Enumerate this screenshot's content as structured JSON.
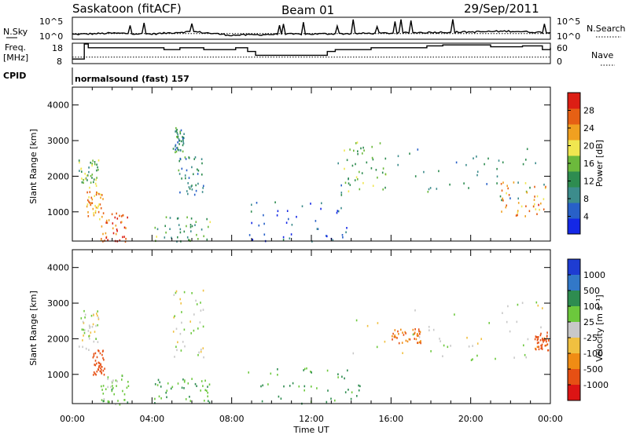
{
  "header": {
    "station": "Saskatoon (fitACF)",
    "beam": "Beam 01",
    "date": "29/Sep/2011"
  },
  "noise_panel": {
    "left_label": "N.Sky",
    "right_label": "N.Search",
    "left_ticks": [
      "10^5",
      "10^0"
    ],
    "right_ticks": [
      "10^5",
      "10^0"
    ]
  },
  "freq_panel": {
    "left_label_line1": "Freq.",
    "left_label_line2": "[MHz]",
    "right_label": "Nave",
    "left_ticks": [
      "18",
      "8"
    ],
    "right_ticks": [
      "60",
      "0"
    ]
  },
  "cpid": {
    "label": "CPID",
    "program": "normalsound (fast) 157"
  },
  "axes": {
    "ylabel": "Slant Range [km]",
    "xlabel": "Time UT",
    "yticks": [
      "1000",
      "2000",
      "3000",
      "4000"
    ],
    "xticks": [
      "00:00",
      "04:00",
      "08:00",
      "12:00",
      "16:00",
      "20:00",
      "00:00"
    ]
  },
  "power_colorbar": {
    "label": "Power [dB]",
    "ticks": [
      "4",
      "8",
      "12",
      "16",
      "20",
      "24",
      "28"
    ],
    "colors": [
      "#1428e6",
      "#2860c8",
      "#3c8c8c",
      "#2e8c50",
      "#6cb93c",
      "#f0e650",
      "#f0a020",
      "#e66014",
      "#dc1e14"
    ]
  },
  "velocity_colorbar": {
    "label": "Velocity [m s⁻¹]",
    "ticks": [
      "1000",
      "500",
      "100",
      "25",
      "-25",
      "-100",
      "-500",
      "-1000"
    ],
    "colors": [
      "#1e3cd2",
      "#3278c8",
      "#2e8c50",
      "#6cc83c",
      "#c8c8c8",
      "#f0c040",
      "#f08c14",
      "#e65014",
      "#dc1414"
    ]
  },
  "chart_data": [
    {
      "type": "line",
      "title": "",
      "series": [
        {
          "name": "N.Sky",
          "x_hours": [
            0,
            2,
            4,
            6,
            8,
            10,
            12,
            14,
            16,
            18,
            20,
            22,
            24
          ],
          "log10_values": [
            1.0,
            1.3,
            1.1,
            1.7,
            0.8,
            1.0,
            1.1,
            1.2,
            1.3,
            1.5,
            1.6,
            1.8,
            1.4
          ]
        }
      ],
      "ylim_log10": [
        0,
        5
      ],
      "xlim_hours": [
        0,
        24
      ]
    },
    {
      "type": "line",
      "title": "",
      "series": [
        {
          "name": "Freq",
          "x_hours": [
            0,
            0.6,
            0.8,
            3.3,
            4.2,
            4.6,
            5.4,
            6.6,
            8.2,
            8.8,
            9.2,
            10.0,
            12.8,
            13.2,
            15.0,
            16.0,
            17.8,
            18.6,
            21.0,
            22.6,
            23.6,
            24
          ],
          "values": [
            10,
            18,
            16,
            16,
            16,
            15,
            16,
            15,
            16,
            14,
            12,
            12,
            14,
            15,
            16,
            16,
            17,
            17.5,
            16.5,
            17,
            15,
            16
          ]
        },
        {
          "name": "Nave",
          "x_hours": [
            0,
            24
          ],
          "values": [
            18,
            18
          ]
        }
      ],
      "ylim": [
        8,
        18
      ],
      "ylim_right": [
        0,
        60
      ]
    },
    {
      "type": "heatmap",
      "title": "Power [dB]",
      "xlabel": "Time UT",
      "ylabel": "Slant Range [km]",
      "xlim_hours": [
        0,
        24
      ],
      "ylim_km": [
        180,
        4500
      ],
      "cmax_db": 30,
      "blobs": [
        {
          "t0": 0.3,
          "t1": 1.3,
          "r0": 1700,
          "r1": 2500,
          "p": 14
        },
        {
          "t0": 0.7,
          "t1": 1.6,
          "r0": 800,
          "r1": 1600,
          "p": 22
        },
        {
          "t0": 1.4,
          "t1": 2.8,
          "r0": 180,
          "r1": 1000,
          "p": 26
        },
        {
          "t0": 4.1,
          "t1": 6.9,
          "r0": 180,
          "r1": 900,
          "p": 12
        },
        {
          "t0": 5.0,
          "t1": 5.6,
          "r0": 2700,
          "r1": 3400,
          "p": 10
        },
        {
          "t0": 5.3,
          "t1": 6.6,
          "r0": 1500,
          "r1": 2600,
          "p": 9
        },
        {
          "t0": 8.8,
          "t1": 13.8,
          "r0": 180,
          "r1": 1300,
          "p": 6
        },
        {
          "t0": 13.3,
          "t1": 23.8,
          "r0": 1300,
          "r1": 2800,
          "p": 10
        },
        {
          "t0": 13.6,
          "t1": 15.8,
          "r0": 1600,
          "r1": 3000,
          "p": 14
        },
        {
          "t0": 21.5,
          "t1": 23.8,
          "r0": 900,
          "r1": 1900,
          "p": 22
        }
      ]
    },
    {
      "type": "heatmap",
      "title": "Velocity [m s⁻¹]",
      "xlabel": "Time UT",
      "ylabel": "Slant Range [km]",
      "xlim_hours": [
        0,
        24
      ],
      "ylim_km": [
        180,
        4500
      ],
      "blobs": [
        {
          "t0": 0.3,
          "t1": 1.3,
          "r0": 1700,
          "r1": 2900,
          "v": 0
        },
        {
          "t0": 1.0,
          "t1": 1.6,
          "r0": 1000,
          "r1": 1700,
          "v": -400
        },
        {
          "t0": 1.4,
          "t1": 2.8,
          "r0": 180,
          "r1": 1000,
          "v": 60
        },
        {
          "t0": 4.1,
          "t1": 6.9,
          "r0": 180,
          "r1": 900,
          "v": 90
        },
        {
          "t0": 5.0,
          "t1": 6.6,
          "r0": 1500,
          "r1": 3400,
          "v": 0
        },
        {
          "t0": 8.8,
          "t1": 14.5,
          "r0": 180,
          "r1": 1200,
          "v": 110
        },
        {
          "t0": 13.3,
          "t1": 23.8,
          "r0": 1400,
          "r1": 3100,
          "v": 0
        },
        {
          "t0": 16.0,
          "t1": 17.5,
          "r0": 1900,
          "r1": 2300,
          "v": -300
        },
        {
          "t0": 23.2,
          "t1": 23.9,
          "r0": 1700,
          "r1": 2200,
          "v": -350
        }
      ]
    }
  ]
}
